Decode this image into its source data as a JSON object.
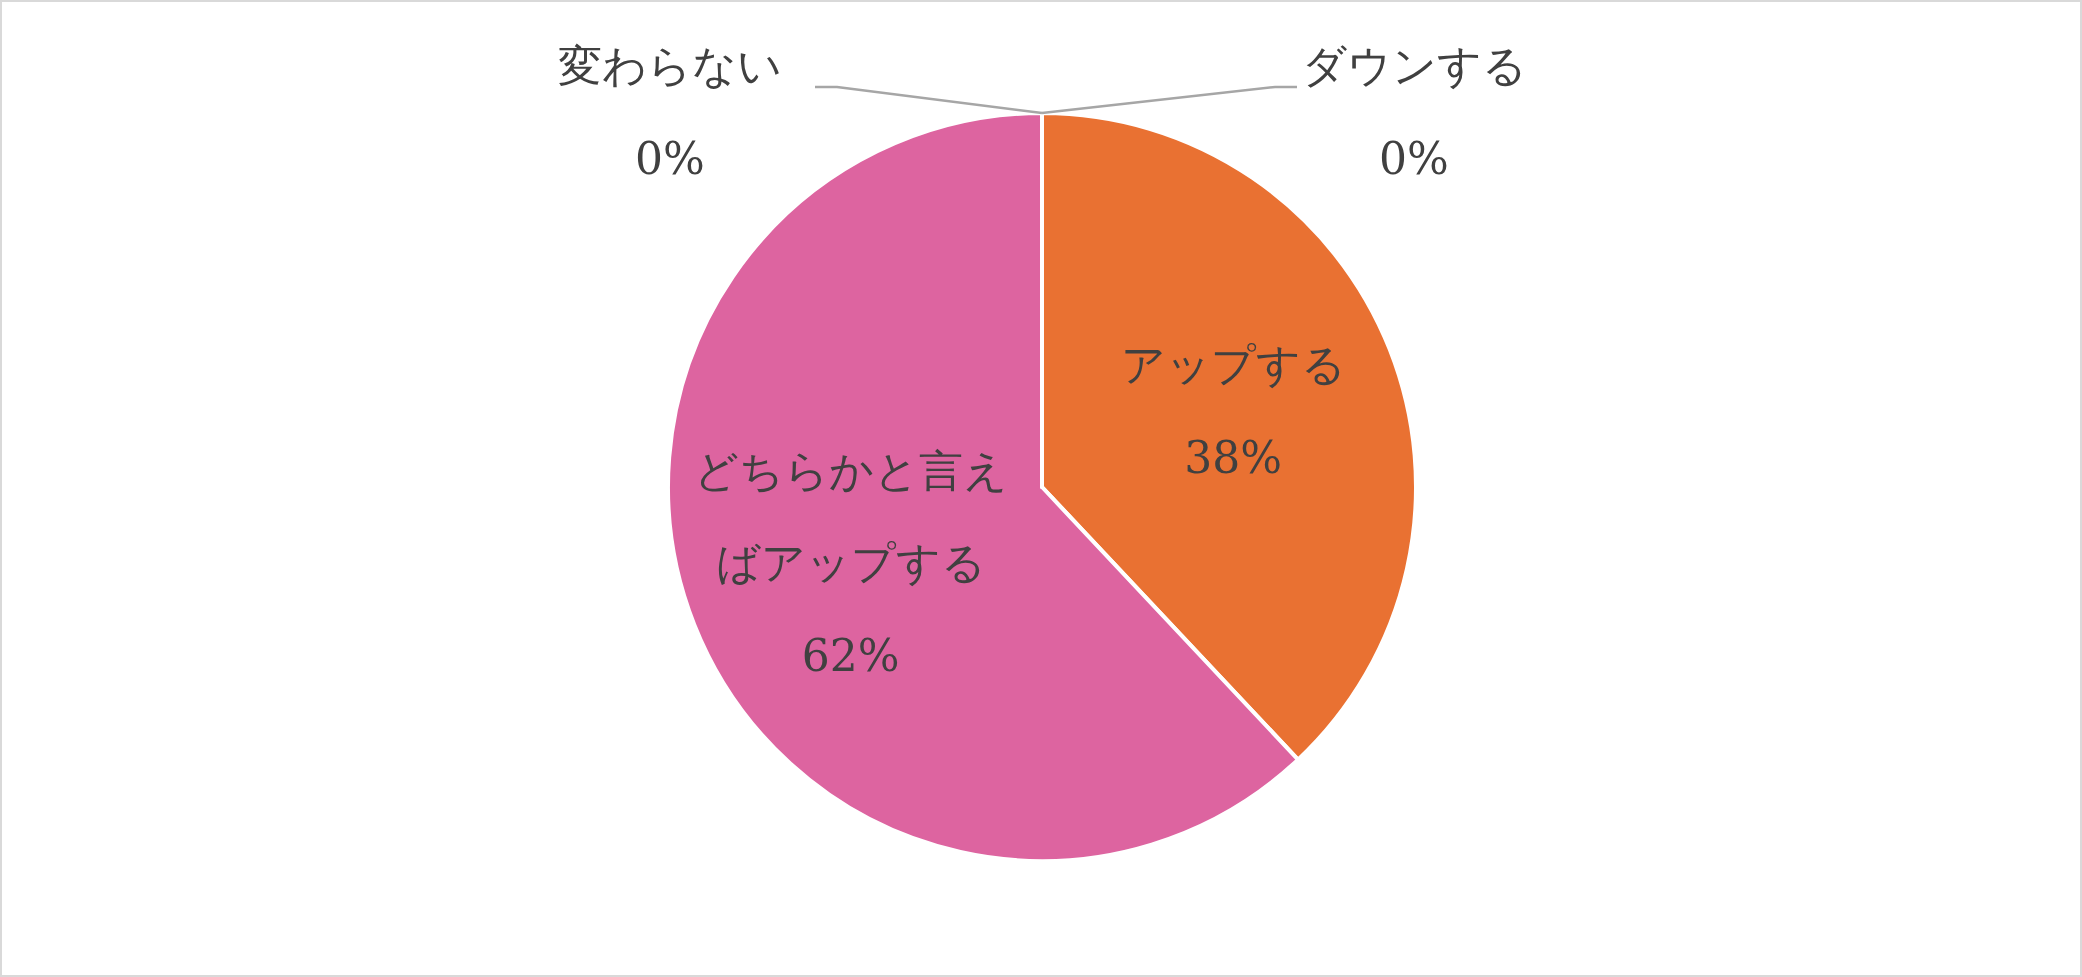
{
  "chart_data": {
    "type": "pie",
    "categories": [
      "アップする",
      "どちらかと言えばアップする",
      "変わらない",
      "ダウンする"
    ],
    "values": [
      38,
      62,
      0,
      0
    ],
    "colors": [
      "#e97132",
      "#dd64a0",
      "#4ea72e",
      "#0f9ed5"
    ],
    "value_labels": [
      "38%",
      "62%",
      "0%",
      "0%"
    ]
  }
}
